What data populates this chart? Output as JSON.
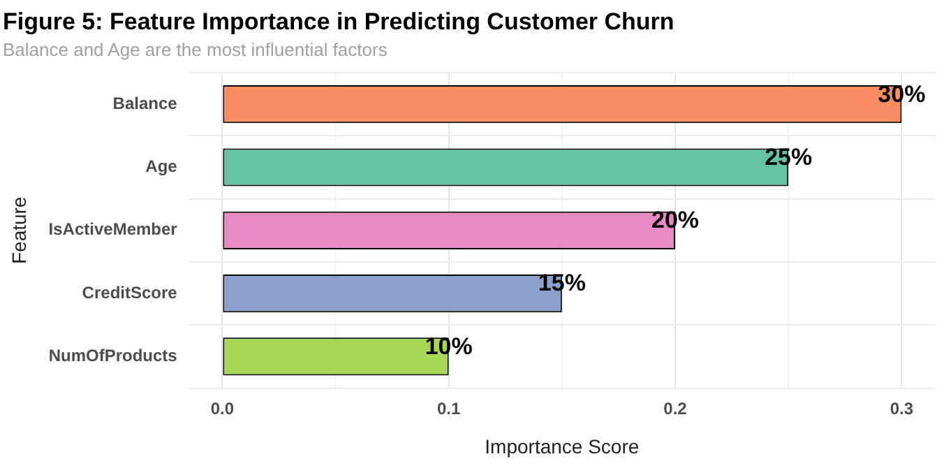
{
  "chart_data": {
    "type": "bar",
    "orientation": "horizontal",
    "title": "Figure 5: Feature Importance in Predicting Customer Churn",
    "subtitle": "Balance and Age are the most influential factors",
    "xlabel": "Importance Score",
    "ylabel": "Feature",
    "categories": [
      "Balance",
      "Age",
      "IsActiveMember",
      "CreditScore",
      "NumOfProducts"
    ],
    "values": [
      0.3,
      0.25,
      0.2,
      0.15,
      0.1
    ],
    "colors": [
      "#fc8d62",
      "#66c2a5",
      "#e78ac3",
      "#8da0cb",
      "#a6d854"
    ],
    "value_labels": [
      "30%",
      "25%",
      "20%",
      "15%",
      "10%"
    ],
    "xlim": [
      -0.015,
      0.315
    ],
    "xticks": [
      {
        "value": 0,
        "label": "0.0"
      },
      {
        "value": 0.05,
        "label": null
      },
      {
        "value": 0.1,
        "label": "0.1"
      },
      {
        "value": 0.15,
        "label": null
      },
      {
        "value": 0.2,
        "label": "0.2"
      },
      {
        "value": 0.25,
        "label": null
      },
      {
        "value": 0.3,
        "label": "0.3"
      }
    ],
    "grid": true,
    "legend": false
  }
}
